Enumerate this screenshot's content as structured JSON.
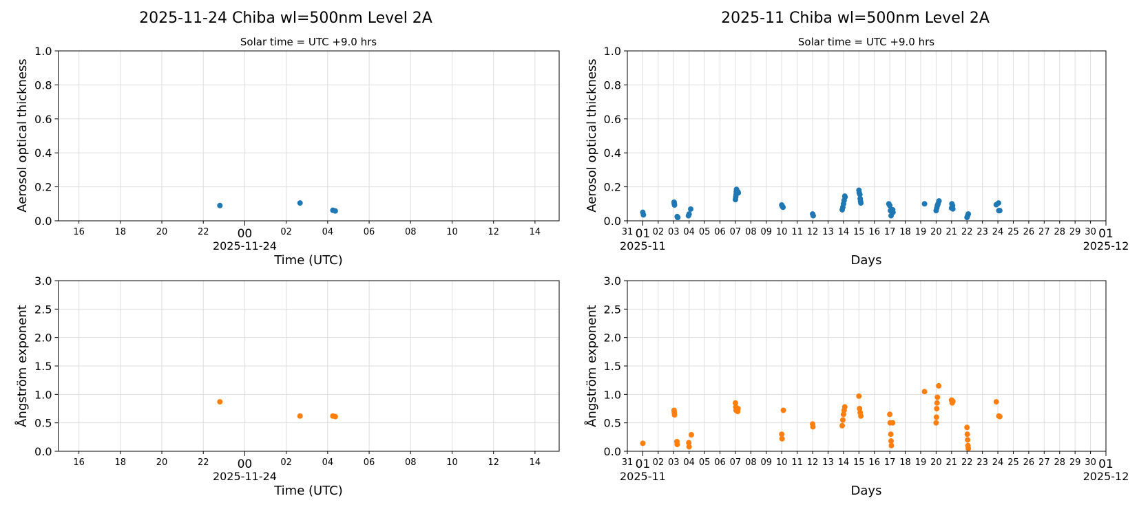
{
  "colors": {
    "aot": "#1f77b4",
    "angstrom": "#ff7f0e",
    "grid": "#dddddd"
  },
  "chart_data": [
    {
      "type": "scatter",
      "title": "2025-11-24  Chiba  wl=500nm  Level 2A",
      "subtitle": "Solar time = UTC +9.0 hrs",
      "xlabel": "Time (UTC)",
      "ylabel": "Aerosol optical thickness",
      "xlim": [
        "2025-11-23T15:00",
        "2025-11-24T15:10"
      ],
      "ylim": [
        0,
        1.0
      ],
      "yticks": [
        "0.0",
        "0.2",
        "0.4",
        "0.6",
        "0.8",
        "1.0"
      ],
      "xticks": [
        {
          "at": "2025-11-23T16:00",
          "label": "16"
        },
        {
          "at": "2025-11-23T18:00",
          "label": "18"
        },
        {
          "at": "2025-11-23T20:00",
          "label": "20"
        },
        {
          "at": "2025-11-23T22:00",
          "label": "22"
        },
        {
          "at": "2025-11-24T00:00",
          "label": "00",
          "major": true,
          "sublabel": "2025-11-24"
        },
        {
          "at": "2025-11-24T02:00",
          "label": "02"
        },
        {
          "at": "2025-11-24T04:00",
          "label": "04"
        },
        {
          "at": "2025-11-24T06:00",
          "label": "06"
        },
        {
          "at": "2025-11-24T08:00",
          "label": "08"
        },
        {
          "at": "2025-11-24T10:00",
          "label": "10"
        },
        {
          "at": "2025-11-24T12:00",
          "label": "12"
        },
        {
          "at": "2025-11-24T14:00",
          "label": "14"
        }
      ],
      "grid": true,
      "series_color": "#1f77b4",
      "points": [
        [
          "2025-11-23T22:48",
          0.09
        ],
        [
          "2025-11-24T02:40",
          0.105
        ],
        [
          "2025-11-24T04:15",
          0.062
        ],
        [
          "2025-11-24T04:22",
          0.058
        ]
      ]
    },
    {
      "type": "scatter",
      "title": "2025-11  Chiba  wl=500nm  Level 2A",
      "subtitle": "Solar time = UTC +9.0 hrs",
      "xlabel": "Days",
      "ylabel": "Aerosol optical thickness",
      "xlim": [
        "2025-10-31T00:00",
        "2025-12-01T00:00"
      ],
      "ylim": [
        0,
        1.0
      ],
      "yticks": [
        "0.0",
        "0.2",
        "0.4",
        "0.6",
        "0.8",
        "1.0"
      ],
      "xticks_daily": {
        "start": "2025-10-31",
        "labels": [
          "31",
          "01",
          "02",
          "03",
          "04",
          "05",
          "06",
          "07",
          "08",
          "09",
          "10",
          "11",
          "12",
          "13",
          "14",
          "15",
          "16",
          "17",
          "18",
          "19",
          "20",
          "21",
          "22",
          "23",
          "24",
          "25",
          "26",
          "27",
          "28",
          "29",
          "30",
          "01"
        ],
        "majors": {
          "1": "2025-11",
          "31": "2025-12"
        }
      },
      "grid": true,
      "series_color": "#1f77b4",
      "points": [
        [
          "2025-11-01T00:00",
          0.05
        ],
        [
          "2025-11-01T01:00",
          0.035
        ],
        [
          "2025-11-03T00:40",
          0.11
        ],
        [
          "2025-11-03T01:00",
          0.1
        ],
        [
          "2025-11-03T01:20",
          0.093
        ],
        [
          "2025-11-03T05:30",
          0.025
        ],
        [
          "2025-11-03T06:00",
          0.02
        ],
        [
          "2025-11-03T06:30",
          0.02
        ],
        [
          "2025-11-03T23:00",
          0.03
        ],
        [
          "2025-11-04T00:00",
          0.04
        ],
        [
          "2025-11-04T02:30",
          0.069
        ],
        [
          "2025-11-07T00:00",
          0.125
        ],
        [
          "2025-11-07T00:30",
          0.14
        ],
        [
          "2025-11-07T01:00",
          0.155
        ],
        [
          "2025-11-07T01:20",
          0.17
        ],
        [
          "2025-11-07T01:40",
          0.185
        ],
        [
          "2025-11-07T04:00",
          0.17
        ],
        [
          "2025-11-07T04:30",
          0.165
        ],
        [
          "2025-11-10T00:00",
          0.093
        ],
        [
          "2025-11-10T01:00",
          0.085
        ],
        [
          "2025-11-10T02:00",
          0.08
        ],
        [
          "2025-11-12T00:00",
          0.04
        ],
        [
          "2025-11-12T01:00",
          0.03
        ],
        [
          "2025-11-13T22:00",
          0.065
        ],
        [
          "2025-11-13T23:00",
          0.08
        ],
        [
          "2025-11-14T00:00",
          0.1
        ],
        [
          "2025-11-14T01:00",
          0.12
        ],
        [
          "2025-11-14T02:00",
          0.145
        ],
        [
          "2025-11-14T02:30",
          0.14
        ],
        [
          "2025-11-15T00:00",
          0.18
        ],
        [
          "2025-11-15T00:30",
          0.165
        ],
        [
          "2025-11-15T01:30",
          0.155
        ],
        [
          "2025-11-15T02:00",
          0.13
        ],
        [
          "2025-11-15T02:30",
          0.115
        ],
        [
          "2025-11-15T03:00",
          0.105
        ],
        [
          "2025-11-16T22:30",
          0.1
        ],
        [
          "2025-11-17T00:00",
          0.09
        ],
        [
          "2025-11-17T01:00",
          0.06
        ],
        [
          "2025-11-17T02:00",
          0.03
        ],
        [
          "2025-11-17T04:30",
          0.065
        ],
        [
          "2025-11-17T05:00",
          0.05
        ],
        [
          "2025-11-19T06:00",
          0.1
        ],
        [
          "2025-11-20T00:00",
          0.06
        ],
        [
          "2025-11-20T01:00",
          0.075
        ],
        [
          "2025-11-20T02:00",
          0.09
        ],
        [
          "2025-11-20T03:00",
          0.1
        ],
        [
          "2025-11-20T04:30",
          0.117
        ],
        [
          "2025-11-21T00:30",
          0.1
        ],
        [
          "2025-11-21T01:30",
          0.09
        ],
        [
          "2025-11-21T00:00",
          0.075
        ],
        [
          "2025-11-21T02:00",
          0.07
        ],
        [
          "2025-11-22T00:00",
          0.02
        ],
        [
          "2025-11-22T01:00",
          0.03
        ],
        [
          "2025-11-22T02:00",
          0.04
        ],
        [
          "2025-11-23T21:30",
          0.095
        ],
        [
          "2025-11-24T01:00",
          0.105
        ],
        [
          "2025-11-24T01:30",
          0.06
        ],
        [
          "2025-11-24T03:00",
          0.06
        ]
      ]
    },
    {
      "type": "scatter",
      "xlabel": "Time (UTC)",
      "ylabel": "Ångström exponent",
      "xlim": [
        "2025-11-23T15:00",
        "2025-11-24T15:10"
      ],
      "ylim": [
        0,
        3.0
      ],
      "yticks": [
        "0.0",
        "0.5",
        "1.0",
        "1.5",
        "2.0",
        "2.5",
        "3.0"
      ],
      "xticks": [
        {
          "at": "2025-11-23T16:00",
          "label": "16"
        },
        {
          "at": "2025-11-23T18:00",
          "label": "18"
        },
        {
          "at": "2025-11-23T20:00",
          "label": "20"
        },
        {
          "at": "2025-11-23T22:00",
          "label": "22"
        },
        {
          "at": "2025-11-24T00:00",
          "label": "00",
          "major": true,
          "sublabel": "2025-11-24"
        },
        {
          "at": "2025-11-24T02:00",
          "label": "02"
        },
        {
          "at": "2025-11-24T04:00",
          "label": "04"
        },
        {
          "at": "2025-11-24T06:00",
          "label": "06"
        },
        {
          "at": "2025-11-24T08:00",
          "label": "08"
        },
        {
          "at": "2025-11-24T10:00",
          "label": "10"
        },
        {
          "at": "2025-11-24T12:00",
          "label": "12"
        },
        {
          "at": "2025-11-24T14:00",
          "label": "14"
        }
      ],
      "grid": true,
      "series_color": "#ff7f0e",
      "points": [
        [
          "2025-11-23T22:48",
          0.87
        ],
        [
          "2025-11-24T02:40",
          0.62
        ],
        [
          "2025-11-24T04:15",
          0.62
        ],
        [
          "2025-11-24T04:22",
          0.61
        ]
      ]
    },
    {
      "type": "scatter",
      "xlabel": "Days",
      "ylabel": "Ångström exponent",
      "xlim": [
        "2025-10-31T00:00",
        "2025-12-01T00:00"
      ],
      "ylim": [
        0,
        3.0
      ],
      "yticks": [
        "0.0",
        "0.5",
        "1.0",
        "1.5",
        "2.0",
        "2.5",
        "3.0"
      ],
      "xticks_daily": {
        "start": "2025-10-31",
        "labels": [
          "31",
          "01",
          "02",
          "03",
          "04",
          "05",
          "06",
          "07",
          "08",
          "09",
          "10",
          "11",
          "12",
          "13",
          "14",
          "15",
          "16",
          "17",
          "18",
          "19",
          "20",
          "21",
          "22",
          "23",
          "24",
          "25",
          "26",
          "27",
          "28",
          "29",
          "30",
          "01"
        ],
        "majors": {
          "1": "2025-11",
          "31": "2025-12"
        }
      },
      "grid": true,
      "series_color": "#ff7f0e",
      "points": [
        [
          "2025-11-01T00:00",
          0.14
        ],
        [
          "2025-11-03T00:40",
          0.72
        ],
        [
          "2025-11-03T01:00",
          0.68
        ],
        [
          "2025-11-03T01:20",
          0.64
        ],
        [
          "2025-11-03T05:00",
          0.17
        ],
        [
          "2025-11-03T05:30",
          0.12
        ],
        [
          "2025-11-03T23:30",
          0.15
        ],
        [
          "2025-11-04T00:00",
          0.08
        ],
        [
          "2025-11-04T03:30",
          0.29
        ],
        [
          "2025-11-07T00:00",
          0.85
        ],
        [
          "2025-11-07T00:30",
          0.78
        ],
        [
          "2025-11-07T01:00",
          0.72
        ],
        [
          "2025-11-07T03:30",
          0.7
        ],
        [
          "2025-11-07T04:00",
          0.75
        ],
        [
          "2025-11-10T00:00",
          0.3
        ],
        [
          "2025-11-10T00:30",
          0.22
        ],
        [
          "2025-11-10T02:30",
          0.72
        ],
        [
          "2025-11-12T00:00",
          0.48
        ],
        [
          "2025-11-12T00:30",
          0.43
        ],
        [
          "2025-11-13T22:00",
          0.45
        ],
        [
          "2025-11-13T23:00",
          0.55
        ],
        [
          "2025-11-14T00:00",
          0.65
        ],
        [
          "2025-11-14T01:00",
          0.72
        ],
        [
          "2025-11-14T02:00",
          0.78
        ],
        [
          "2025-11-15T00:00",
          0.97
        ],
        [
          "2025-11-15T01:00",
          0.75
        ],
        [
          "2025-11-15T02:00",
          0.68
        ],
        [
          "2025-11-15T03:00",
          0.62
        ],
        [
          "2025-11-17T00:00",
          0.65
        ],
        [
          "2025-11-17T00:30",
          0.5
        ],
        [
          "2025-11-17T01:30",
          0.3
        ],
        [
          "2025-11-17T02:00",
          0.18
        ],
        [
          "2025-11-17T02:30",
          0.1
        ],
        [
          "2025-11-17T04:30",
          0.5
        ],
        [
          "2025-11-19T06:00",
          1.05
        ],
        [
          "2025-11-20T00:00",
          0.5
        ],
        [
          "2025-11-20T00:30",
          0.6
        ],
        [
          "2025-11-20T01:00",
          0.75
        ],
        [
          "2025-11-20T01:30",
          0.85
        ],
        [
          "2025-11-20T02:00",
          0.95
        ],
        [
          "2025-11-20T04:00",
          1.15
        ],
        [
          "2025-11-21T00:00",
          0.9
        ],
        [
          "2025-11-21T01:00",
          0.85
        ],
        [
          "2025-11-21T02:00",
          0.88
        ],
        [
          "2025-11-22T00:00",
          0.42
        ],
        [
          "2025-11-22T00:30",
          0.3
        ],
        [
          "2025-11-22T01:00",
          0.2
        ],
        [
          "2025-11-22T01:30",
          0.1
        ],
        [
          "2025-11-22T02:00",
          0.05
        ],
        [
          "2025-11-23T21:30",
          0.87
        ],
        [
          "2025-11-24T01:30",
          0.62
        ],
        [
          "2025-11-24T03:00",
          0.61
        ]
      ]
    }
  ]
}
